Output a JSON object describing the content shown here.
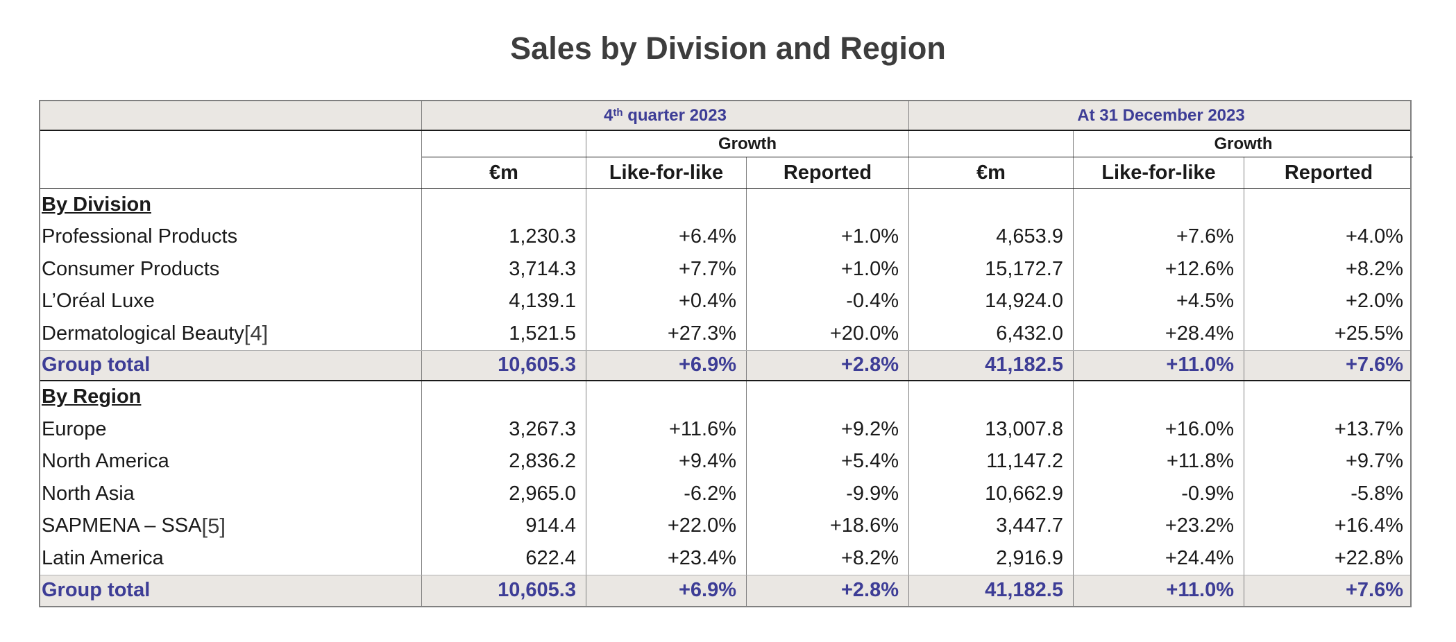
{
  "title": "Sales by Division and Region",
  "header": {
    "period_q4_prefix": "4",
    "period_q4_sup": "th",
    "period_q4_suffix": " quarter 2023",
    "period_year": "At 31 December 2023",
    "growth_label": "Growth",
    "col_em": "€m",
    "col_lfl": "Like-for-like",
    "col_reported": "Reported"
  },
  "division": {
    "heading": "By Division",
    "rows": [
      {
        "label": "Professional Products",
        "footnote": "",
        "values": [
          "1,230.3",
          "+6.4%",
          "+1.0%",
          "4,653.9",
          "+7.6%",
          "+4.0%"
        ]
      },
      {
        "label": "Consumer Products",
        "footnote": "",
        "values": [
          "3,714.3",
          "+7.7%",
          "+1.0%",
          "15,172.7",
          "+12.6%",
          "+8.2%"
        ]
      },
      {
        "label": "L’Oréal Luxe",
        "footnote": "",
        "values": [
          "4,139.1",
          "+0.4%",
          "-0.4%",
          "14,924.0",
          "+4.5%",
          "+2.0%"
        ]
      },
      {
        "label": "Dermatological Beauty",
        "footnote": "[4]",
        "values": [
          "1,521.5",
          "+27.3%",
          "+20.0%",
          "6,432.0",
          "+28.4%",
          "+25.5%"
        ]
      }
    ],
    "total": {
      "label": "Group total",
      "values": [
        "10,605.3",
        "+6.9%",
        "+2.8%",
        "41,182.5",
        "+11.0%",
        "+7.6%"
      ]
    }
  },
  "region": {
    "heading": "By Region",
    "rows": [
      {
        "label": "Europe",
        "footnote": "",
        "values": [
          "3,267.3",
          "+11.6%",
          "+9.2%",
          "13,007.8",
          "+16.0%",
          "+13.7%"
        ]
      },
      {
        "label": "North America",
        "footnote": "",
        "values": [
          "2,836.2",
          "+9.4%",
          "+5.4%",
          "11,147.2",
          "+11.8%",
          "+9.7%"
        ]
      },
      {
        "label": "North Asia",
        "footnote": "",
        "values": [
          "2,965.0",
          "-6.2%",
          "-9.9%",
          "10,662.9",
          "-0.9%",
          "-5.8%"
        ]
      },
      {
        "label": "SAPMENA – SSA",
        "footnote": "[5]",
        "values": [
          "914.4",
          "+22.0%",
          "+18.6%",
          "3,447.7",
          "+23.2%",
          "+16.4%"
        ]
      },
      {
        "label": "Latin America",
        "footnote": "",
        "values": [
          "622.4",
          "+23.4%",
          "+8.2%",
          "2,916.9",
          "+24.4%",
          "+22.8%"
        ]
      }
    ],
    "total": {
      "label": "Group total",
      "values": [
        "10,605.3",
        "+6.9%",
        "+2.8%",
        "41,182.5",
        "+11.0%",
        "+7.6%"
      ]
    }
  },
  "colors": {
    "accent_text": "#3d3d96",
    "header_bg": "#eae7e3",
    "border": "#808080"
  }
}
